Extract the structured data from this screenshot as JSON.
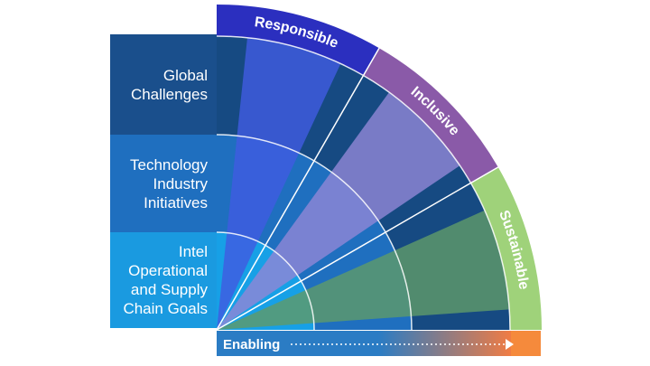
{
  "rows": [
    {
      "label": "Global\nChallenges",
      "color": "#1a4f8c"
    },
    {
      "label": "Technology\nIndustry\nInitiatives",
      "color": "#1f6fbf"
    },
    {
      "label": "Intel\nOperational\nand Supply\nChain Goals",
      "color": "#1a9ae0"
    }
  ],
  "pillars": [
    {
      "label": "Responsible",
      "band_color": "#2b2fbf",
      "wedge_color": "#3f5be0"
    },
    {
      "label": "Inclusive",
      "band_color": "#8a5aa8",
      "wedge_color": "#8f86d6"
    },
    {
      "label": "Sustainable",
      "band_color": "#9fd27a",
      "wedge_color": "#5e9a6a"
    }
  ],
  "enabling": {
    "label": "Enabling",
    "bar_color": "#2b7cc4",
    "gradient_end": "#f07c44",
    "end_color": "#f58a3c"
  },
  "colors": {
    "ring_outer": "#164a82",
    "ring_middle": "#1f6fbf",
    "ring_inner": "#17a0e6",
    "divider": "#ffffff"
  }
}
